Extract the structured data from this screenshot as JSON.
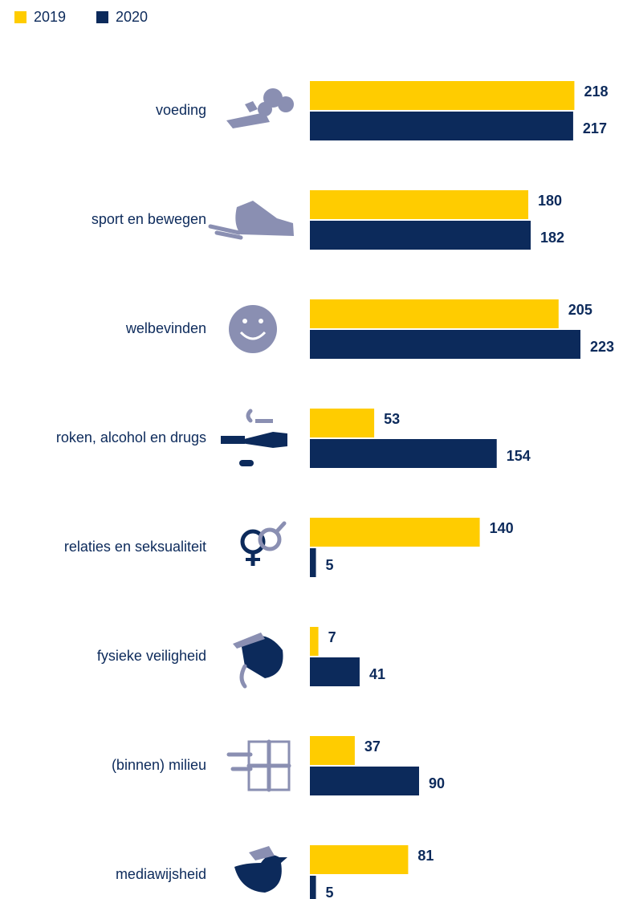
{
  "chart_data": {
    "type": "bar",
    "orientation": "horizontal",
    "categories": [
      "voeding",
      "sport en bewegen",
      "welbevinden",
      "roken, alcohol en drugs",
      "relaties en seksualiteit",
      "fysieke veiligheid",
      "(binnen) milieu",
      "mediawijsheid"
    ],
    "series": [
      {
        "name": "2019",
        "color": "#ffcc00",
        "values": [
          218,
          180,
          205,
          53,
          140,
          7,
          37,
          81
        ]
      },
      {
        "name": "2020",
        "color": "#0c2a5b",
        "values": [
          217,
          182,
          223,
          154,
          5,
          41,
          90,
          5
        ]
      }
    ]
  }
}
